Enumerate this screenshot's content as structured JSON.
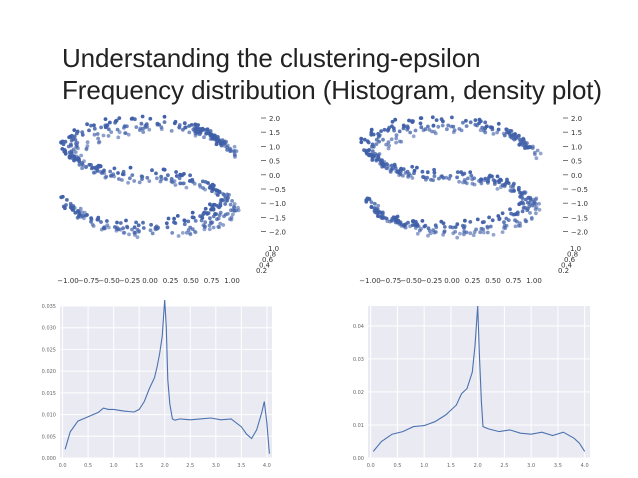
{
  "slide": {
    "title_line1": "Understanding the clustering-epsilon",
    "title_line2": "Frequency distribution (Histogram, density plot)"
  },
  "colors": {
    "point": "#3f5fa8",
    "line": "#4c72b0",
    "plot_bg": "#eaeaf2",
    "grid": "#ffffff"
  },
  "chart_data": [
    {
      "type": "scatter",
      "subtype": "3d",
      "title": "",
      "x_ticks": [
        "−1.00",
        "−0.75",
        "−0.50",
        "−0.25",
        "0.00",
        "0.25",
        "0.50",
        "0.75",
        "1.00"
      ],
      "y_ticks": [
        "1.0",
        "0.8",
        "0.6",
        "0.4",
        "0.2"
      ],
      "z_ticks": [
        "2.0",
        "1.5",
        "1.0",
        "0.5",
        "0.0",
        "−0.5",
        "−1.0",
        "−1.5",
        "−2.0"
      ],
      "xlim": [
        -1.0,
        1.0
      ],
      "zlim": [
        -2.0,
        2.0
      ],
      "shape": "S-curve"
    },
    {
      "type": "scatter",
      "subtype": "3d",
      "title": "",
      "x_ticks": [
        "−1.00",
        "−0.75",
        "−0.50",
        "−0.25",
        "0.00",
        "0.25",
        "0.50",
        "0.75",
        "1.00"
      ],
      "y_ticks": [
        "1.0",
        "0.8",
        "0.6",
        "0.4",
        "0.2"
      ],
      "z_ticks": [
        "2.0",
        "1.5",
        "1.0",
        "0.5",
        "0.0",
        "−0.5",
        "−1.0",
        "−1.5",
        "−2.0"
      ],
      "xlim": [
        -1.0,
        1.0
      ],
      "zlim": [
        -2.0,
        2.0
      ],
      "shape": "S-curve"
    },
    {
      "type": "line",
      "title": "",
      "xlim": [
        -0.05,
        4.1
      ],
      "ylim": [
        0,
        0.035
      ],
      "x_ticks": [
        "0.0",
        "0.5",
        "1.0",
        "1.5",
        "2.0",
        "2.5",
        "3.0",
        "3.5",
        "4.0"
      ],
      "y_ticks": [
        "0.000",
        "0.005",
        "0.010",
        "0.015",
        "0.020",
        "0.025",
        "0.030",
        "0.035"
      ],
      "x": [
        0.05,
        0.15,
        0.3,
        0.5,
        0.7,
        0.8,
        0.9,
        1.0,
        1.2,
        1.4,
        1.5,
        1.6,
        1.7,
        1.8,
        1.85,
        1.9,
        1.95,
        1.98,
        2.0,
        2.03,
        2.06,
        2.1,
        2.15,
        2.2,
        2.3,
        2.5,
        2.7,
        2.9,
        3.1,
        3.3,
        3.5,
        3.6,
        3.7,
        3.8,
        3.9,
        3.95,
        4.0,
        4.05
      ],
      "y": [
        0.002,
        0.006,
        0.0085,
        0.0095,
        0.0105,
        0.0115,
        0.0112,
        0.0112,
        0.0108,
        0.0106,
        0.0112,
        0.013,
        0.016,
        0.0185,
        0.021,
        0.024,
        0.028,
        0.033,
        0.0365,
        0.03,
        0.018,
        0.0125,
        0.009,
        0.0087,
        0.009,
        0.0088,
        0.009,
        0.0092,
        0.0088,
        0.009,
        0.0072,
        0.0055,
        0.0045,
        0.0065,
        0.0105,
        0.013,
        0.008,
        0.001
      ]
    },
    {
      "type": "line",
      "title": "",
      "xlim": [
        -0.05,
        4.1
      ],
      "ylim": [
        0,
        0.046
      ],
      "x_ticks": [
        "0.0",
        "0.5",
        "1.0",
        "1.5",
        "2.0",
        "2.5",
        "3.0",
        "3.5",
        "4.0"
      ],
      "y_ticks": [
        "0.00",
        "0.01",
        "0.02",
        "0.03",
        "0.04"
      ],
      "x": [
        0.05,
        0.2,
        0.4,
        0.6,
        0.8,
        1.0,
        1.2,
        1.4,
        1.6,
        1.7,
        1.8,
        1.9,
        1.95,
        2.0,
        2.03,
        2.07,
        2.1,
        2.2,
        2.4,
        2.6,
        2.8,
        3.0,
        3.2,
        3.4,
        3.6,
        3.8,
        3.9,
        4.0
      ],
      "y": [
        0.002,
        0.005,
        0.0072,
        0.008,
        0.0095,
        0.0098,
        0.011,
        0.013,
        0.016,
        0.0195,
        0.021,
        0.026,
        0.034,
        0.046,
        0.032,
        0.017,
        0.0095,
        0.0088,
        0.008,
        0.0085,
        0.0075,
        0.0072,
        0.0078,
        0.0068,
        0.0078,
        0.006,
        0.0045,
        0.002
      ]
    }
  ]
}
